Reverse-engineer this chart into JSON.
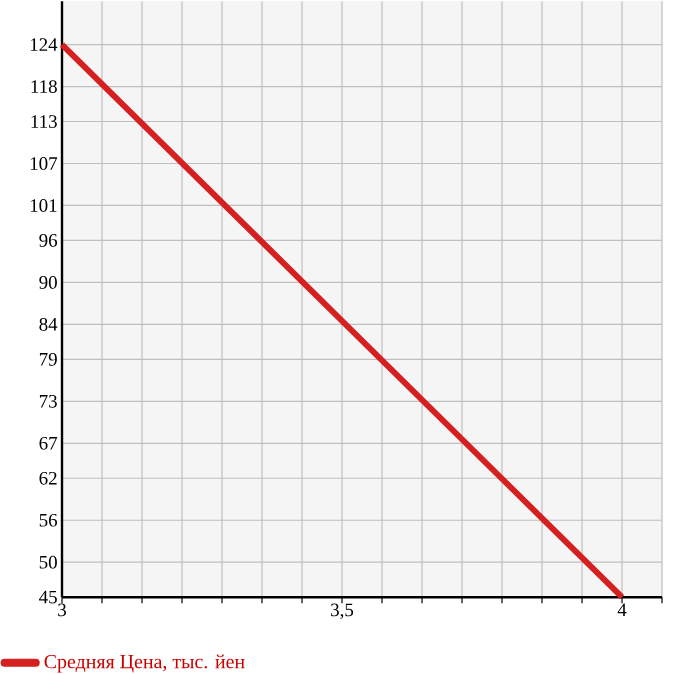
{
  "chart_data": {
    "type": "line",
    "x": [
      3,
      4
    ],
    "series": [
      {
        "name": "Средняя Цена, тыс. йен",
        "color": "#d42020",
        "values": [
          124,
          45
        ]
      }
    ],
    "xlim": [
      3,
      4.0714
    ],
    "ylim": [
      45,
      130.2
    ],
    "xticks": [
      {
        "value": 3,
        "label": "3"
      },
      {
        "value": 3.0714,
        "label": null
      },
      {
        "value": 3.1429,
        "label": null
      },
      {
        "value": 3.2143,
        "label": null
      },
      {
        "value": 3.2857,
        "label": null
      },
      {
        "value": 3.3571,
        "label": null
      },
      {
        "value": 3.4286,
        "label": null
      },
      {
        "value": 3.5,
        "label": "3,5"
      },
      {
        "value": 3.5714,
        "label": null
      },
      {
        "value": 3.6429,
        "label": null
      },
      {
        "value": 3.7143,
        "label": null
      },
      {
        "value": 3.7857,
        "label": null
      },
      {
        "value": 3.8571,
        "label": null
      },
      {
        "value": 3.9286,
        "label": null
      },
      {
        "value": 4,
        "label": "4"
      },
      {
        "value": 4.0714,
        "label": null
      }
    ],
    "yticks": [
      45,
      50,
      56,
      62,
      67,
      73,
      79,
      84,
      90,
      96,
      101,
      107,
      113,
      118,
      124
    ],
    "grid": true,
    "legend": "bottom left",
    "marker": "none",
    "line_style": "solid"
  }
}
